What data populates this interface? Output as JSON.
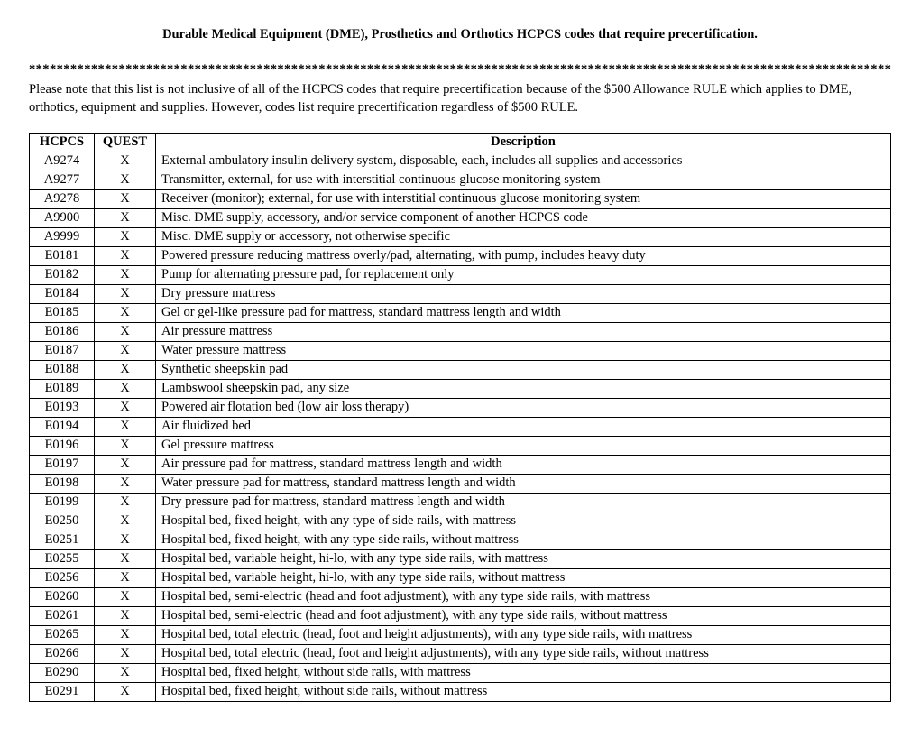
{
  "title": "Durable Medical Equipment (DME), Prosthetics and Orthotics HCPCS codes that require precertification.",
  "divider": "**********************************************************************************************************************************",
  "note": "Please note that this list is not inclusive of all of the HCPCS codes that require precertification because of the $500 Allowance RULE which applies to DME, orthotics, equipment and supplies. However, codes list require precertification regardless of $500 RULE.",
  "columns": [
    "HCPCS",
    "QUEST",
    "Description"
  ],
  "rows": [
    {
      "code": "A9274",
      "quest": "X",
      "desc": "External ambulatory insulin delivery system, disposable, each, includes all supplies and accessories"
    },
    {
      "code": "A9277",
      "quest": "X",
      "desc": "Transmitter, external, for use with interstitial continuous glucose monitoring system"
    },
    {
      "code": "A9278",
      "quest": "X",
      "desc": "Receiver (monitor); external, for use with interstitial continuous glucose monitoring system"
    },
    {
      "code": "A9900",
      "quest": "X",
      "desc": "Misc. DME supply, accessory, and/or service component of another HCPCS code"
    },
    {
      "code": "A9999",
      "quest": "X",
      "desc": "Misc. DME supply or accessory, not otherwise specific"
    },
    {
      "code": "E0181",
      "quest": "X",
      "desc": "Powered pressure reducing mattress overly/pad, alternating, with pump, includes heavy duty"
    },
    {
      "code": "E0182",
      "quest": "X",
      "desc": "Pump for alternating pressure pad, for replacement only"
    },
    {
      "code": "E0184",
      "quest": "X",
      "desc": "Dry pressure mattress"
    },
    {
      "code": "E0185",
      "quest": "X",
      "desc": "Gel or gel-like pressure pad for mattress, standard mattress length and width"
    },
    {
      "code": "E0186",
      "quest": "X",
      "desc": "Air pressure mattress"
    },
    {
      "code": "E0187",
      "quest": "X",
      "desc": "Water pressure mattress"
    },
    {
      "code": "E0188",
      "quest": "X",
      "desc": "Synthetic sheepskin pad"
    },
    {
      "code": "E0189",
      "quest": "X",
      "desc": "Lambswool sheepskin pad, any size"
    },
    {
      "code": "E0193",
      "quest": "X",
      "desc": "Powered air flotation bed (low air loss therapy)"
    },
    {
      "code": "E0194",
      "quest": "X",
      "desc": "Air fluidized bed"
    },
    {
      "code": "E0196",
      "quest": "X",
      "desc": "Gel pressure mattress"
    },
    {
      "code": "E0197",
      "quest": "X",
      "desc": "Air pressure pad for mattress, standard mattress length and width"
    },
    {
      "code": "E0198",
      "quest": "X",
      "desc": "Water pressure pad for mattress, standard mattress length and width"
    },
    {
      "code": "E0199",
      "quest": "X",
      "desc": "Dry pressure pad for mattress, standard mattress length and width"
    },
    {
      "code": "E0250",
      "quest": "X",
      "desc": "Hospital bed, fixed height, with any type of side rails, with mattress"
    },
    {
      "code": "E0251",
      "quest": "X",
      "desc": "Hospital bed, fixed height, with any type side rails, without mattress"
    },
    {
      "code": "E0255",
      "quest": "X",
      "desc": "Hospital bed, variable height, hi-lo, with any type side rails, with mattress"
    },
    {
      "code": "E0256",
      "quest": "X",
      "desc": "Hospital bed, variable height, hi-lo, with any type side rails, without mattress"
    },
    {
      "code": "E0260",
      "quest": "X",
      "desc": "Hospital bed, semi-electric (head and foot adjustment), with any type side rails, with mattress"
    },
    {
      "code": "E0261",
      "quest": "X",
      "desc": "Hospital bed, semi-electric (head and foot adjustment), with any type side rails, without mattress"
    },
    {
      "code": "E0265",
      "quest": "X",
      "desc": "Hospital bed, total electric (head, foot and height adjustments), with any type side rails, with mattress"
    },
    {
      "code": "E0266",
      "quest": "X",
      "desc": "Hospital bed, total electric (head, foot and height adjustments), with any type side rails, without mattress"
    },
    {
      "code": "E0290",
      "quest": "X",
      "desc": "Hospital bed, fixed height, without side rails, with mattress"
    },
    {
      "code": "E0291",
      "quest": "X",
      "desc": "Hospital bed, fixed height, without side rails, without mattress"
    }
  ]
}
